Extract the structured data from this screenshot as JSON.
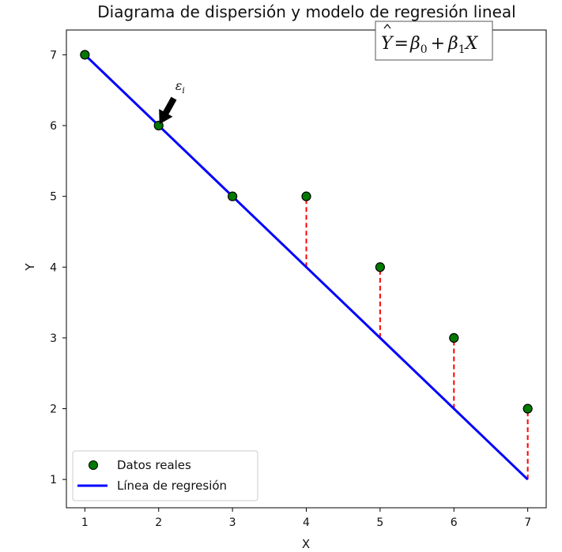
{
  "chart_data": {
    "type": "scatter",
    "title": "Diagrama de dispersión y modelo de regresión lineal",
    "xlabel": "X",
    "ylabel": "Y",
    "xlim": [
      0.75,
      7.25
    ],
    "ylim": [
      0.6,
      7.35
    ],
    "x_ticks": [
      1,
      2,
      3,
      4,
      5,
      6,
      7
    ],
    "y_ticks": [
      1,
      2,
      3,
      4,
      5,
      6,
      7
    ],
    "grid": false,
    "legend_position": "lower-left",
    "series": [
      {
        "name": "Datos reales",
        "kind": "scatter",
        "color": "#007a00",
        "edge_color": "#000000",
        "x": [
          1,
          2,
          3,
          4,
          5,
          6,
          7
        ],
        "y": [
          7,
          6,
          5,
          5,
          4,
          3,
          2
        ]
      },
      {
        "name": "Línea de regresión",
        "kind": "line",
        "color": "#0000ff",
        "x": [
          1,
          7
        ],
        "y": [
          7,
          1
        ]
      }
    ],
    "residuals": {
      "color": "#ff0000",
      "style": "dashed",
      "segments": [
        {
          "x": 4,
          "y_from": 4,
          "y_to": 5
        },
        {
          "x": 5,
          "y_from": 3,
          "y_to": 4
        },
        {
          "x": 6,
          "y_from": 2,
          "y_to": 3
        },
        {
          "x": 7,
          "y_from": 1,
          "y_to": 2
        }
      ]
    },
    "annotations": [
      {
        "text": "ε",
        "subscript": "i",
        "points_to": {
          "x": 2,
          "y": 6
        },
        "arrow_color": "#000000"
      }
    ],
    "equation_box": {
      "yhat": "Y",
      "equals": "=",
      "beta": "β",
      "sub0": "0",
      "plus": "+",
      "sub1": "1",
      "xvar": "X",
      "position": "top-right"
    }
  }
}
